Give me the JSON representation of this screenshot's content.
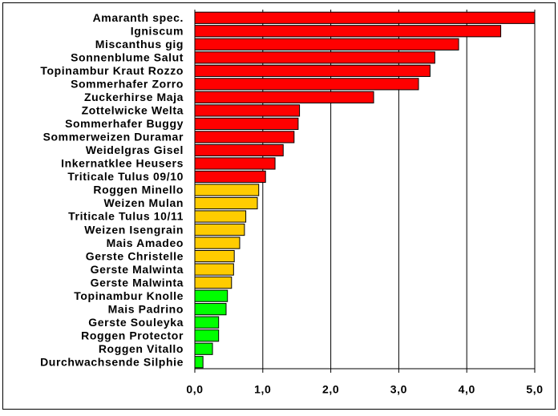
{
  "chart_data": {
    "type": "hbar",
    "categories": [
      "Amaranth spec.",
      "Igniscum",
      "Miscanthus gig",
      "Sonnenblume Salut",
      "Topinambur Kraut Rozzo",
      "Sommerhafer Zorro",
      "Zuckerhirse Maja",
      "Zottelwicke Welta",
      "Sommerhafer Buggy",
      "Sommerweizen Duramar",
      "Weidelgras Gisel",
      "Inkernatklee Heusers",
      "Triticale Tulus 09/10",
      "Roggen Minello",
      "Weizen Mulan",
      "Triticale Tulus 10/11",
      "Weizen Isengrain",
      "Mais Amadeo",
      "Gerste Christelle",
      "Gerste Malwinta",
      "Gerste Malwinta",
      "Topinambur Knolle",
      "Mais Padrino",
      "Gerste Souleyka",
      "Roggen Protector",
      "Roggen Vitallo",
      "Durchwachsende Silphie"
    ],
    "values": [
      5.0,
      4.5,
      3.88,
      3.53,
      3.46,
      3.29,
      2.63,
      1.54,
      1.52,
      1.46,
      1.3,
      1.18,
      1.04,
      0.94,
      0.92,
      0.75,
      0.73,
      0.66,
      0.58,
      0.57,
      0.54,
      0.48,
      0.46,
      0.35,
      0.35,
      0.26,
      0.12
    ],
    "colors": [
      "#ff0000",
      "#ff0000",
      "#ff0000",
      "#ff0000",
      "#ff0000",
      "#ff0000",
      "#ff0000",
      "#ff0000",
      "#ff0000",
      "#ff0000",
      "#ff0000",
      "#ff0000",
      "#ff0000",
      "#ffcc00",
      "#ffcc00",
      "#ffcc00",
      "#ffcc00",
      "#ffcc00",
      "#ffcc00",
      "#ffcc00",
      "#ffcc00",
      "#00ff00",
      "#00ff00",
      "#00ff00",
      "#00ff00",
      "#00ff00",
      "#00ff00"
    ],
    "xlim": [
      0,
      5
    ],
    "xticks": [
      {
        "value": 0,
        "label": "0,0"
      },
      {
        "value": 1,
        "label": "1,0"
      },
      {
        "value": 2,
        "label": "2,0"
      },
      {
        "value": 3,
        "label": "3,0"
      },
      {
        "value": 4,
        "label": "4,0"
      },
      {
        "value": 5,
        "label": "5,0"
      }
    ],
    "grid": true
  }
}
